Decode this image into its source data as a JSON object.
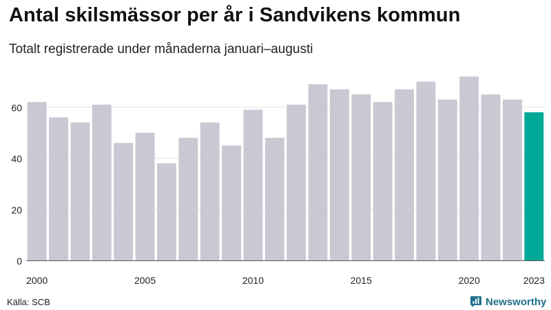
{
  "title": "Antal skilsmässor per år i Sandvikens kommun",
  "subtitle": "Totalt registrerade under månaderna januari–augusti",
  "source": "Källa: SCB",
  "brand": {
    "name": "Newsworthy",
    "icon": "newsworthy-logo-icon",
    "color": "#1f6f8b"
  },
  "colors": {
    "bar": "#c9c8d3",
    "highlight": "#00a898",
    "grid": "#e3e3e3",
    "axis": "#555555"
  },
  "chart_data": {
    "type": "bar",
    "title": "Antal skilsmässor per år i Sandvikens kommun",
    "subtitle": "Totalt registrerade under månaderna januari–augusti",
    "xlabel": "",
    "ylabel": "",
    "grid": true,
    "ylim": [
      0,
      75
    ],
    "yticks": [
      0,
      20,
      40,
      60
    ],
    "categories": [
      2000,
      2001,
      2002,
      2003,
      2004,
      2005,
      2006,
      2007,
      2008,
      2009,
      2010,
      2011,
      2012,
      2013,
      2014,
      2015,
      2016,
      2017,
      2018,
      2019,
      2020,
      2021,
      2022,
      2023
    ],
    "xtick_labels": [
      "2000",
      "2005",
      "2010",
      "2015",
      "2020",
      "2023"
    ],
    "values": [
      62,
      56,
      54,
      61,
      46,
      50,
      38,
      48,
      54,
      45,
      59,
      48,
      61,
      69,
      67,
      65,
      62,
      67,
      70,
      63,
      72,
      65,
      63,
      58
    ],
    "highlight_category": 2023
  }
}
